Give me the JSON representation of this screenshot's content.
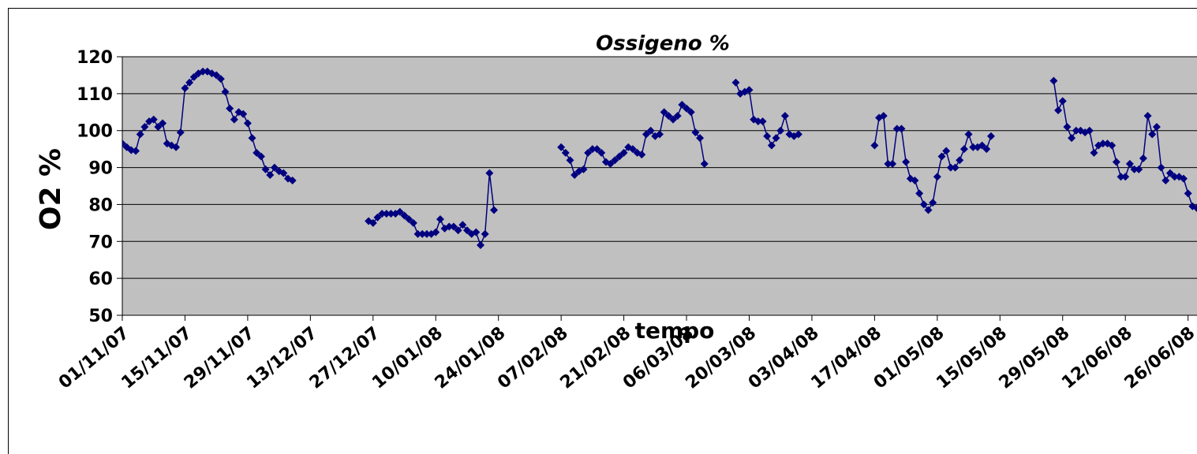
{
  "chart_data": {
    "type": "line",
    "title": "Ossigeno %",
    "xlabel": "tempo",
    "ylabel": "O2 %",
    "color": "#000080",
    "grid": true,
    "ylim": [
      50,
      120
    ],
    "yticks": [
      50,
      60,
      70,
      80,
      90,
      100,
      110,
      120
    ],
    "xlim": [
      "2007-11-01",
      "2008-06-28"
    ],
    "xticks": [
      {
        "value": "2007-11-01",
        "label": "01/11/07"
      },
      {
        "value": "2007-11-15",
        "label": "15/11/07"
      },
      {
        "value": "2007-11-29",
        "label": "29/11/07"
      },
      {
        "value": "2007-12-13",
        "label": "13/12/07"
      },
      {
        "value": "2007-12-27",
        "label": "27/12/07"
      },
      {
        "value": "2008-01-10",
        "label": "10/01/08"
      },
      {
        "value": "2008-01-24",
        "label": "24/01/08"
      },
      {
        "value": "2008-02-07",
        "label": "07/02/08"
      },
      {
        "value": "2008-02-21",
        "label": "21/02/08"
      },
      {
        "value": "2008-03-06",
        "label": "06/03/08"
      },
      {
        "value": "2008-03-20",
        "label": "20/03/08"
      },
      {
        "value": "2008-04-03",
        "label": "03/04/08"
      },
      {
        "value": "2008-04-17",
        "label": "17/04/08"
      },
      {
        "value": "2008-05-01",
        "label": "01/05/08"
      },
      {
        "value": "2008-05-15",
        "label": "15/05/08"
      },
      {
        "value": "2008-05-29",
        "label": "29/05/08"
      },
      {
        "value": "2008-06-12",
        "label": "12/06/08"
      },
      {
        "value": "2008-06-26",
        "label": "26/06/08"
      }
    ],
    "x": [
      "2007-11-01",
      "2007-11-02",
      "2007-11-03",
      "2007-11-04",
      "2007-11-05",
      "2007-11-06",
      "2007-11-07",
      "2007-11-08",
      "2007-11-09",
      "2007-11-10",
      "2007-11-11",
      "2007-11-12",
      "2007-11-13",
      "2007-11-14",
      "2007-11-15",
      "2007-11-16",
      "2007-11-17",
      "2007-11-18",
      "2007-11-19",
      "2007-11-20",
      "2007-11-21",
      "2007-11-22",
      "2007-11-23",
      "2007-11-24",
      "2007-11-25",
      "2007-11-26",
      "2007-11-27",
      "2007-11-28",
      "2007-11-29",
      "2007-11-30",
      "2007-12-01",
      "2007-12-02",
      "2007-12-03",
      "2007-12-04",
      "2007-12-05",
      "2007-12-06",
      "2007-12-07",
      "2007-12-08",
      "2007-12-09",
      "2007-12-15",
      "2007-12-26",
      "2007-12-27",
      "2007-12-28",
      "2007-12-29",
      "2007-12-30",
      "2007-12-31",
      "2008-01-01",
      "2008-01-02",
      "2008-01-03",
      "2008-01-04",
      "2008-01-05",
      "2008-01-06",
      "2008-01-07",
      "2008-01-08",
      "2008-01-09",
      "2008-01-10",
      "2008-01-11",
      "2008-01-12",
      "2008-01-13",
      "2008-01-14",
      "2008-01-15",
      "2008-01-16",
      "2008-01-17",
      "2008-01-18",
      "2008-01-19",
      "2008-01-20",
      "2008-01-21",
      "2008-01-22",
      "2008-01-23",
      "2008-02-01",
      "2008-02-07",
      "2008-02-08",
      "2008-02-09",
      "2008-02-10",
      "2008-02-11",
      "2008-02-12",
      "2008-02-13",
      "2008-02-14",
      "2008-02-15",
      "2008-02-16",
      "2008-02-17",
      "2008-02-18",
      "2008-02-19",
      "2008-02-20",
      "2008-02-21",
      "2008-02-22",
      "2008-02-23",
      "2008-02-24",
      "2008-02-25",
      "2008-02-26",
      "2008-02-27",
      "2008-02-28",
      "2008-02-29",
      "2008-03-01",
      "2008-03-02",
      "2008-03-03",
      "2008-03-04",
      "2008-03-05",
      "2008-03-06",
      "2008-03-07",
      "2008-03-08",
      "2008-03-09",
      "2008-03-10",
      "2008-03-14",
      "2008-03-17",
      "2008-03-18",
      "2008-03-19",
      "2008-03-20",
      "2008-03-21",
      "2008-03-22",
      "2008-03-23",
      "2008-03-24",
      "2008-03-25",
      "2008-03-26",
      "2008-03-27",
      "2008-03-28",
      "2008-03-29",
      "2008-03-30",
      "2008-03-31",
      "2008-04-10",
      "2008-04-17",
      "2008-04-18",
      "2008-04-19",
      "2008-04-20",
      "2008-04-21",
      "2008-04-22",
      "2008-04-23",
      "2008-04-24",
      "2008-04-25",
      "2008-04-26",
      "2008-04-27",
      "2008-04-28",
      "2008-04-29",
      "2008-04-30",
      "2008-05-01",
      "2008-05-02",
      "2008-05-03",
      "2008-05-04",
      "2008-05-05",
      "2008-05-06",
      "2008-05-07",
      "2008-05-08",
      "2008-05-09",
      "2008-05-10",
      "2008-05-11",
      "2008-05-12",
      "2008-05-13",
      "2008-05-20",
      "2008-05-27",
      "2008-05-28",
      "2008-05-29",
      "2008-05-30",
      "2008-05-31",
      "2008-06-01",
      "2008-06-02",
      "2008-06-03",
      "2008-06-04",
      "2008-06-05",
      "2008-06-06",
      "2008-06-07",
      "2008-06-08",
      "2008-06-09",
      "2008-06-10",
      "2008-06-11",
      "2008-06-12",
      "2008-06-13",
      "2008-06-14",
      "2008-06-15",
      "2008-06-16",
      "2008-06-17",
      "2008-06-18",
      "2008-06-19",
      "2008-06-20",
      "2008-06-21",
      "2008-06-22",
      "2008-06-23",
      "2008-06-24",
      "2008-06-25",
      "2008-06-26",
      "2008-06-27",
      "2008-06-28"
    ],
    "values": [
      96.5,
      95.5,
      94.7,
      94.5,
      99,
      101,
      102.5,
      103,
      101,
      102,
      96.5,
      96,
      95.5,
      99.5,
      111.5,
      113,
      114.5,
      115.5,
      116,
      116,
      115.5,
      115,
      114,
      110.5,
      106,
      103,
      105,
      104.5,
      102,
      98,
      94,
      93,
      89.5,
      88,
      90,
      89,
      88.5,
      87,
      86.5,
      null,
      75.5,
      75,
      76.5,
      77.5,
      77.5,
      77.5,
      77.5,
      78,
      77,
      76,
      75,
      72,
      72,
      72,
      72,
      72.5,
      76,
      73.5,
      74,
      74,
      73,
      74.5,
      73,
      72,
      72.5,
      69,
      72,
      88.5,
      78.5,
      null,
      95.5,
      94,
      92,
      88,
      89,
      89.5,
      94,
      95,
      95,
      94,
      91.5,
      91,
      92,
      93,
      94,
      95.5,
      95,
      94,
      93.5,
      99,
      100,
      98.5,
      99,
      105,
      104,
      103,
      104,
      107,
      106,
      105,
      99.5,
      98,
      91,
      null,
      113,
      110,
      110.5,
      111,
      103,
      102.5,
      102.5,
      98.5,
      96,
      98,
      100,
      104,
      99,
      98.5,
      99,
      null,
      96,
      103.5,
      104,
      91,
      91,
      100.5,
      100.5,
      91.5,
      87,
      86.5,
      83,
      80,
      78.5,
      80.5,
      87.5,
      93,
      94.5,
      90,
      90,
      92,
      95,
      99,
      95.5,
      95.5,
      96,
      95,
      98.5,
      null,
      113.5,
      105.5,
      108,
      101,
      98,
      100,
      100,
      99.5,
      100,
      94,
      96,
      96.5,
      96.5,
      96,
      91.5,
      87.5,
      87.5,
      91,
      89.5,
      89.5,
      92.5,
      104,
      99,
      101,
      90,
      86.5,
      88.5,
      87.5,
      87.5,
      87,
      83,
      79.5,
      79
    ]
  }
}
